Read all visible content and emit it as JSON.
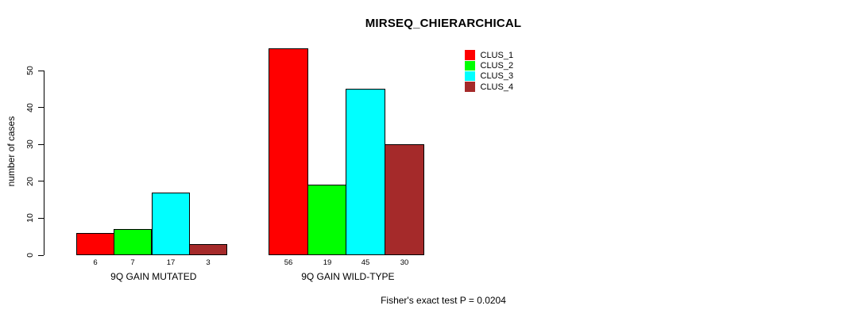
{
  "chart_data": {
    "type": "bar",
    "title": "MIRSEQ_CHIERARCHICAL",
    "ylabel": "number of cases",
    "xlabel": "",
    "ylim": [
      0,
      56
    ],
    "yticks": [
      0,
      10,
      20,
      30,
      40,
      50
    ],
    "categories": [
      "9Q GAIN MUTATED",
      "9Q GAIN WILD-TYPE"
    ],
    "series": [
      {
        "name": "CLUS_1",
        "color": "#FF0000",
        "values": [
          6,
          56
        ]
      },
      {
        "name": "CLUS_2",
        "color": "#00FF00",
        "values": [
          7,
          19
        ]
      },
      {
        "name": "CLUS_3",
        "color": "#00FFFF",
        "values": [
          17,
          45
        ]
      },
      {
        "name": "CLUS_4",
        "color": "#A52A2A",
        "values": [
          3,
          30
        ]
      }
    ],
    "show_values_under_bars": true,
    "grid": false,
    "legend_position": "top-right",
    "annotation": "Fisher's exact test P = 0.0204",
    "colors": {
      "axis": "#000000",
      "text": "#000000",
      "background": "#FFFFFF"
    }
  }
}
